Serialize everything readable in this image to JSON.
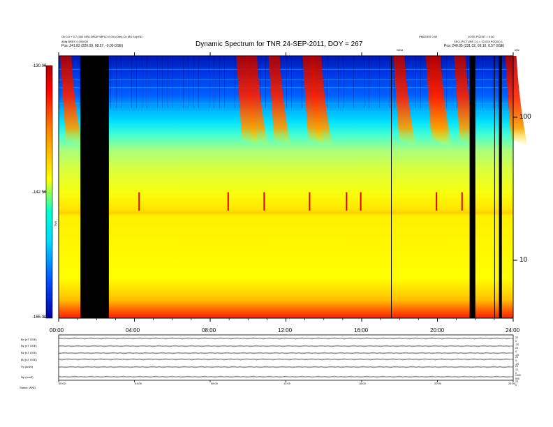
{
  "header": {
    "left_line1": "Gb 0.0 + 0.7 (000 MPA DRDIF/MPLD 0.00) (Obs)   Ch MG Exp RD",
    "left_line2": "AMg BRES 0.000000",
    "left_pos": "Pos:   241.82 (220.00, 68.57, -0.00 GSE)",
    "right_line1": "PMODES 0.50",
    "right_line2": "LOSS PCENT = 0.00",
    "right_line3": "SEQ_PICTURE 2.0 = 10.025 PDQD0.1",
    "right_pos": "Pos:   240.05 (231.02, 69.10, 0.57 GSE)",
    "right_small": "Wind",
    "top_right": "kHz"
  },
  "chart_data": {
    "type": "heatmap",
    "title": "Dynamic Spectrum for TNR 24-SEP-2011, DOY = 267",
    "colorbar": {
      "ticks": [
        "-130.00",
        "-142.50",
        "-155.00"
      ],
      "label": "TNR",
      "min": -155.0,
      "max": -130.0,
      "colors": [
        "#0000a0",
        "#0050ff",
        "#00d8ff",
        "#00ffd0",
        "#ffff00",
        "#ff8000",
        "#ff0000",
        "#b00000"
      ]
    },
    "x_ticks": [
      "00:00",
      "04:00",
      "08:00",
      "12:00",
      "16:00",
      "20:00",
      "24:00"
    ],
    "x_range_hours": [
      0,
      24
    ],
    "y_ticks_right": [
      "100",
      "10"
    ],
    "y_scale": "log",
    "data_gaps_hours": [
      [
        1.15,
        2.65
      ],
      [
        21.7,
        22.0
      ],
      [
        23.25,
        23.4
      ]
    ],
    "burst_times_hours": [
      0.3,
      9.6,
      10.1,
      11.3,
      13.1,
      13.5,
      17.9,
      19.6,
      19.8,
      21.1,
      23.8
    ],
    "spike_times_hours": [
      4.25,
      8.95,
      10.85,
      13.25,
      15.2,
      15.95,
      19.95,
      21.3
    ],
    "band_gap_annotation": "GAPS"
  },
  "bottom_panel": {
    "rows": [
      {
        "label": "Bx (nT GSE)",
        "scale": "20\n0\n-20"
      },
      {
        "label": "By (nT GSE)",
        "scale": "20\n0\n-20"
      },
      {
        "label": "Bz (nT GSE)",
        "scale": "20\n0\n-20"
      },
      {
        "label": "|B| (nT GSE)",
        "scale": "20\n10\n0"
      },
      {
        "label": "Vp (km/s)",
        "scale": "1000\n500"
      },
      {
        "label": "Np (/cm3)",
        "scale": "20\n0"
      }
    ],
    "x_ticks": [
      "00:00",
      "04:00",
      "08:00",
      "12:00",
      "16:00",
      "20:00",
      "24:00"
    ],
    "status_label": "Status: WND"
  }
}
